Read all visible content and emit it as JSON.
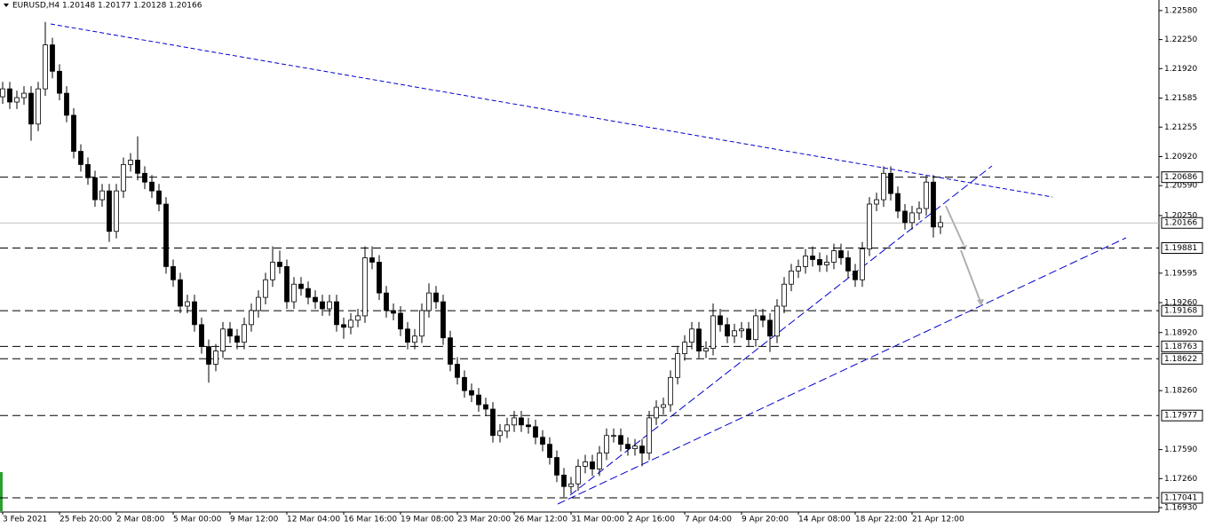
{
  "chart_data": {
    "type": "candlestick",
    "title": "EURUSD,H4  1.20148 1.20177 1.20128 1.20166",
    "categories": [
      "3 Feb 2021",
      null,
      null,
      null,
      null,
      null,
      null,
      null,
      "25 Feb 20:00",
      null,
      null,
      null,
      null,
      null,
      null,
      null,
      "2 Mar 08:00",
      null,
      null,
      null,
      null,
      null,
      null,
      null,
      "5 Mar 00:00",
      null,
      null,
      null,
      null,
      null,
      null,
      null,
      "9 Mar 12:00",
      null,
      null,
      null,
      null,
      null,
      null,
      null,
      "12 Mar 04:00",
      null,
      null,
      null,
      null,
      null,
      null,
      null,
      "16 Mar 16:00",
      null,
      null,
      null,
      null,
      null,
      null,
      null,
      "19 Mar 08:00",
      null,
      null,
      null,
      null,
      null,
      null,
      null,
      "23 Mar 20:00",
      null,
      null,
      null,
      null,
      null,
      null,
      null,
      "26 Mar 12:00",
      null,
      null,
      null,
      null,
      null,
      null,
      null,
      "31 Mar 00:00",
      null,
      null,
      null,
      null,
      null,
      null,
      null,
      "2 Apr 16:00",
      null,
      null,
      null,
      null,
      null,
      null,
      null,
      "7 Apr 04:00",
      null,
      null,
      null,
      null,
      null,
      null,
      null,
      "9 Apr 20:00",
      null,
      null,
      null,
      null,
      null,
      null,
      null,
      "14 Apr 08:00",
      null,
      null,
      null,
      null,
      null,
      null,
      null,
      "18 Apr 22:00",
      null,
      null,
      null,
      null,
      null,
      null,
      null,
      "21 Apr 12:00",
      null,
      null,
      null,
      null
    ],
    "open": [
      1.216,
      1.2169,
      1.2154,
      1.2159,
      1.2164,
      1.2129,
      1.2169,
      1.2219,
      1.2189,
      1.2164,
      1.2139,
      1.2098,
      1.2083,
      1.2068,
      1.2043,
      1.2053,
      1.2007,
      1.2053,
      1.2083,
      1.2088,
      1.2073,
      1.2063,
      1.2053,
      1.2038,
      1.1967,
      1.1952,
      1.1922,
      1.1927,
      1.1901,
      1.1876,
      1.1856,
      1.1871,
      1.1896,
      1.1888,
      1.1881,
      1.1901,
      1.1917,
      1.1932,
      1.1952,
      1.1972,
      1.1967,
      1.1927,
      1.1947,
      1.1942,
      1.1932,
      1.1927,
      1.1919,
      1.1927,
      1.1901,
      1.1898,
      1.1906,
      1.1911,
      1.1977,
      1.1972,
      1.1937,
      1.1917,
      1.1914,
      1.1896,
      1.1881,
      1.1888,
      1.1917,
      1.1937,
      1.1927,
      1.1886,
      1.1856,
      1.1841,
      1.1826,
      1.1821,
      1.181,
      1.1805,
      1.1775,
      1.178,
      1.1787,
      1.1795,
      1.1787,
      1.1785,
      1.1773,
      1.1765,
      1.175,
      1.173,
      1.1717,
      1.172,
      1.174,
      1.1745,
      1.1737,
      1.1755,
      1.1775,
      1.1775,
      1.1765,
      1.176,
      1.1763,
      1.1755,
      1.1795,
      1.1807,
      1.181,
      1.1841,
      1.1868,
      1.1881,
      1.1896,
      1.1871,
      1.1874,
      1.1911,
      1.1901,
      1.1888,
      1.1894,
      1.1896,
      1.1884,
      1.1911,
      1.1906,
      1.1888,
      1.1922,
      1.1947,
      1.1962,
      1.1967,
      1.1979,
      1.1975,
      1.1969,
      1.1972,
      1.1985,
      1.1977,
      1.1962,
      1.1952,
      1.1987,
      1.2038,
      1.2043,
      1.2073,
      1.205,
      1.203,
      1.2017,
      1.2028,
      1.2033,
      1.2063,
      1.2012
    ],
    "high": [
      1.2177,
      1.2177,
      1.2167,
      1.2172,
      1.2172,
      1.2177,
      1.2245,
      1.2227,
      1.2197,
      1.2172,
      1.2147,
      1.2106,
      1.2091,
      1.2076,
      1.2061,
      1.2061,
      1.2061,
      1.2091,
      1.2096,
      1.2115,
      1.2081,
      1.2071,
      1.2061,
      1.2046,
      1.1975,
      1.196,
      1.1935,
      1.1935,
      1.1909,
      1.1884,
      1.1879,
      1.1904,
      1.1904,
      1.1896,
      1.1909,
      1.1925,
      1.194,
      1.196,
      1.199,
      1.1985,
      1.1975,
      1.1955,
      1.1955,
      1.195,
      1.194,
      1.1935,
      1.1935,
      1.1935,
      1.1909,
      1.1914,
      1.1919,
      1.199,
      1.199,
      1.198,
      1.1945,
      1.1925,
      1.1922,
      1.1904,
      1.1896,
      1.1925,
      1.1948,
      1.1945,
      1.1935,
      1.1894,
      1.1864,
      1.1849,
      1.1834,
      1.1829,
      1.1818,
      1.1813,
      1.1788,
      1.1795,
      1.1803,
      1.1803,
      1.1795,
      1.1793,
      1.1781,
      1.1773,
      1.1758,
      1.1738,
      1.1728,
      1.1748,
      1.1753,
      1.1753,
      1.1763,
      1.1783,
      1.1783,
      1.1783,
      1.1773,
      1.1771,
      1.1771,
      1.1803,
      1.1815,
      1.1818,
      1.1849,
      1.1876,
      1.1889,
      1.1904,
      1.1904,
      1.1882,
      1.1925,
      1.1919,
      1.1909,
      1.1902,
      1.1904,
      1.1904,
      1.1919,
      1.1919,
      1.1914,
      1.193,
      1.1955,
      1.197,
      1.1975,
      1.1987,
      1.199,
      1.1983,
      1.198,
      1.1993,
      1.1993,
      1.1985,
      1.197,
      1.1995,
      1.2046,
      1.2051,
      1.2081,
      1.2081,
      1.2058,
      1.2038,
      1.2036,
      1.2041,
      1.207,
      1.2071,
      1.2025
    ],
    "low": [
      1.2152,
      1.2146,
      1.2146,
      1.2151,
      1.211,
      1.2121,
      1.2161,
      1.2181,
      1.2156,
      1.2131,
      1.209,
      1.2075,
      1.206,
      1.2035,
      1.2035,
      1.1995,
      1.1999,
      1.2045,
      1.2075,
      1.2065,
      1.2055,
      1.2045,
      1.203,
      1.1959,
      1.1944,
      1.1914,
      1.1914,
      1.1893,
      1.1868,
      1.1835,
      1.1848,
      1.1863,
      1.188,
      1.1873,
      1.1873,
      1.1893,
      1.1909,
      1.1924,
      1.1944,
      1.1959,
      1.1919,
      1.1919,
      1.1934,
      1.1924,
      1.1919,
      1.1911,
      1.1911,
      1.1893,
      1.1885,
      1.189,
      1.1898,
      1.1903,
      1.1964,
      1.1929,
      1.1909,
      1.1906,
      1.1888,
      1.1873,
      1.1873,
      1.188,
      1.1909,
      1.1919,
      1.1878,
      1.1848,
      1.1833,
      1.1818,
      1.1813,
      1.1802,
      1.1797,
      1.1767,
      1.1767,
      1.1772,
      1.1779,
      1.1779,
      1.1777,
      1.1765,
      1.1757,
      1.1742,
      1.1722,
      1.1705,
      1.1709,
      1.1712,
      1.1732,
      1.1729,
      1.1729,
      1.1747,
      1.1767,
      1.1757,
      1.1752,
      1.1752,
      1.174,
      1.1747,
      1.1787,
      1.1799,
      1.1802,
      1.1833,
      1.186,
      1.1873,
      1.1863,
      1.1863,
      1.1866,
      1.1893,
      1.188,
      1.188,
      1.1886,
      1.1876,
      1.1876,
      1.1898,
      1.187,
      1.188,
      1.1914,
      1.1939,
      1.1954,
      1.1959,
      1.1967,
      1.1961,
      1.1961,
      1.1964,
      1.1969,
      1.1954,
      1.1944,
      1.1944,
      1.1979,
      1.203,
      1.2035,
      1.2042,
      1.2022,
      1.2009,
      1.2009,
      1.202,
      1.2025,
      1.2,
      1.2004
    ],
    "close": [
      1.2169,
      1.2154,
      1.2159,
      1.2164,
      1.2129,
      1.2169,
      1.2219,
      1.2189,
      1.2164,
      1.2139,
      1.2098,
      1.2083,
      1.2068,
      1.2043,
      1.2053,
      1.2007,
      1.2053,
      1.2083,
      1.2088,
      1.2073,
      1.2063,
      1.2053,
      1.2038,
      1.1967,
      1.1952,
      1.1922,
      1.1927,
      1.1901,
      1.1876,
      1.1856,
      1.1871,
      1.1896,
      1.1888,
      1.1881,
      1.1901,
      1.1917,
      1.1932,
      1.1952,
      1.1972,
      1.1967,
      1.1927,
      1.1947,
      1.1942,
      1.1932,
      1.1927,
      1.1919,
      1.1927,
      1.1901,
      1.1898,
      1.1906,
      1.1911,
      1.1977,
      1.1972,
      1.1937,
      1.1917,
      1.1914,
      1.1896,
      1.1881,
      1.1888,
      1.1917,
      1.1937,
      1.1927,
      1.1886,
      1.1856,
      1.1841,
      1.1826,
      1.1821,
      1.181,
      1.1805,
      1.1775,
      1.178,
      1.1787,
      1.1795,
      1.1787,
      1.1785,
      1.1773,
      1.1765,
      1.175,
      1.173,
      1.1717,
      1.172,
      1.174,
      1.1745,
      1.1737,
      1.1755,
      1.1775,
      1.1775,
      1.1765,
      1.176,
      1.1763,
      1.1755,
      1.1795,
      1.1807,
      1.181,
      1.1841,
      1.1868,
      1.1881,
      1.1896,
      1.1871,
      1.1874,
      1.1911,
      1.1901,
      1.1888,
      1.1894,
      1.1896,
      1.1884,
      1.1911,
      1.1906,
      1.1888,
      1.1922,
      1.1947,
      1.1962,
      1.1967,
      1.1979,
      1.1975,
      1.1969,
      1.1972,
      1.1985,
      1.1977,
      1.1962,
      1.1952,
      1.1987,
      1.2038,
      1.2043,
      1.2073,
      1.205,
      1.203,
      1.2017,
      1.2028,
      1.2033,
      1.2063,
      1.2012,
      1.2017
    ],
    "ylim": [
      1.1688,
      1.227
    ],
    "yticks": [
      {
        "value": 1.2258,
        "label": "1.22580"
      },
      {
        "value": 1.2225,
        "label": "1.22250"
      },
      {
        "value": 1.2192,
        "label": "1.21920"
      },
      1.21585,
      1.21255,
      {
        "value": 1.2092,
        "label": "1.20920"
      },
      {
        "value": 1.2059,
        "label": "1.20590"
      },
      {
        "value": 1.2025,
        "label": "1.20250"
      },
      1.19595,
      {
        "value": 1.1926,
        "label": "1.19260"
      },
      {
        "value": 1.1892,
        "label": "1.18920"
      },
      {
        "value": 1.1826,
        "label": "1.18260"
      },
      {
        "value": 1.1759,
        "label": "1.17590"
      },
      {
        "value": 1.1726,
        "label": "1.17260"
      },
      {
        "value": 1.1693,
        "label": "1.16930"
      }
    ],
    "levels": [
      1.20686,
      1.19881,
      1.19168,
      1.18763,
      1.18622,
      1.17977,
      1.17041
    ],
    "current_price": 1.20166,
    "up_color": "#ffffff",
    "down_color": "#000000"
  }
}
